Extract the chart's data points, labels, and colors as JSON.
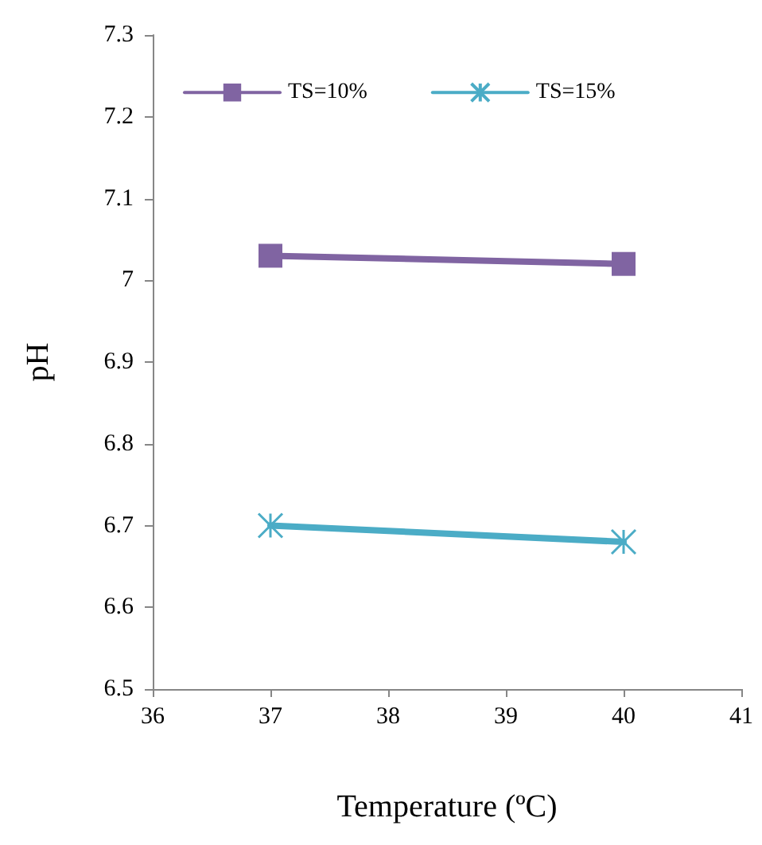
{
  "chart_data": {
    "type": "line",
    "xlabel": "Temperature (ºC)",
    "ylabel": "pH",
    "x": [
      37,
      40
    ],
    "series": [
      {
        "name": "TS=10%",
        "color": "#8064a2",
        "values": [
          7.03,
          7.02
        ],
        "marker": "square"
      },
      {
        "name": "TS=15%",
        "color": "#4bacc6",
        "values": [
          6.7,
          6.68
        ],
        "marker": "cross"
      }
    ],
    "xlim": [
      36,
      41
    ],
    "xticks": [
      36,
      37,
      38,
      39,
      40,
      41
    ],
    "ylim": [
      6.5,
      7.3
    ],
    "yticks": [
      6.5,
      6.6,
      6.7,
      6.8,
      6.9,
      7,
      7.1,
      7.2,
      7.3
    ],
    "grid": false,
    "legend": "top",
    "line_style": "solid"
  }
}
